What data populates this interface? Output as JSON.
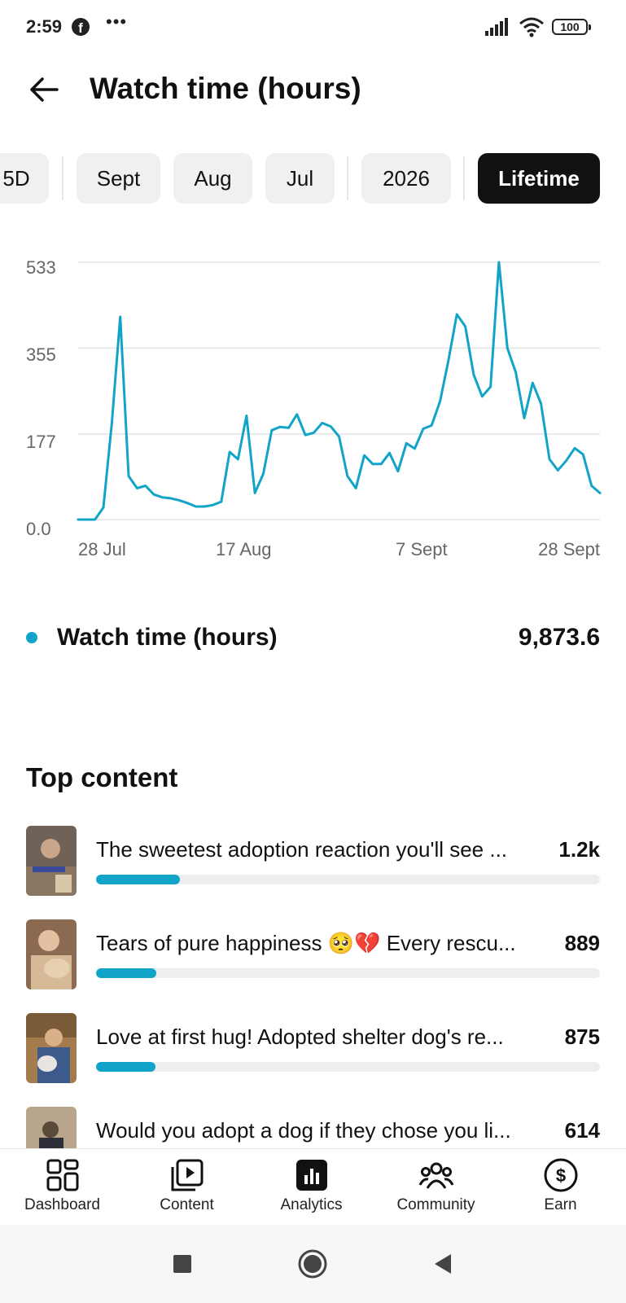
{
  "status_bar": {
    "time": "2:59",
    "battery": "100",
    "icons": [
      "facebook-icon",
      "more-dots-icon",
      "signal-icon",
      "wifi-icon",
      "battery-icon"
    ]
  },
  "header": {
    "title": "Watch time (hours)",
    "back_icon": "arrow-left-icon"
  },
  "filters": {
    "chips": [
      {
        "label": "5D",
        "active": false
      },
      {
        "label": "Sept",
        "active": false
      },
      {
        "label": "Aug",
        "active": false
      },
      {
        "label": "Jul",
        "active": false
      },
      {
        "label": "2026",
        "active": false
      },
      {
        "label": "Lifetime",
        "active": true
      }
    ]
  },
  "chart_data": {
    "type": "line",
    "y_ticks": [
      "533",
      "355",
      "177",
      "0.0"
    ],
    "x_ticks": [
      "28 Jul",
      "17 Aug",
      "7 Sept",
      "28 Sept"
    ],
    "ylim": [
      0,
      533
    ],
    "grid": true,
    "series": [
      {
        "color": "#12a4c8",
        "values": [
          0,
          0,
          0,
          25,
          200,
          420,
          90,
          65,
          70,
          52,
          46,
          44,
          40,
          34,
          27,
          27,
          30,
          37,
          140,
          125,
          215,
          55,
          95,
          185,
          192,
          190,
          218,
          175,
          180,
          200,
          193,
          172,
          90,
          65,
          133,
          115,
          115,
          138,
          100,
          158,
          147,
          188,
          195,
          245,
          330,
          425,
          400,
          300,
          255,
          275,
          533,
          355,
          305,
          210,
          283,
          240,
          125,
          102,
          122,
          148,
          135,
          70,
          55
        ]
      }
    ]
  },
  "legend": {
    "label": "Watch time (hours)",
    "value": "9,873.6",
    "color": "#12a4c8"
  },
  "top_content": {
    "title": "Top content",
    "items": [
      {
        "title": "The sweetest adoption reaction you'll see ...",
        "count": "1.2k",
        "share": 0.167
      },
      {
        "title": "Tears of pure happiness 🥺💔 Every rescu...",
        "count": "889",
        "share": 0.12
      },
      {
        "title": "Love at first hug! Adopted shelter dog's re...",
        "count": "875",
        "share": 0.118
      },
      {
        "title": "Would you adopt a dog if they chose you li...",
        "count": "614",
        "share": 0.083
      }
    ]
  },
  "bottom_nav": {
    "items": [
      {
        "label": "Dashboard",
        "icon": "dashboard-icon"
      },
      {
        "label": "Content",
        "icon": "content-icon"
      },
      {
        "label": "Analytics",
        "icon": "analytics-icon"
      },
      {
        "label": "Community",
        "icon": "community-icon"
      },
      {
        "label": "Earn",
        "icon": "earn-icon"
      }
    ]
  },
  "system_nav": {
    "icons": [
      "recent-apps-icon",
      "home-icon",
      "back-triangle-icon"
    ]
  }
}
